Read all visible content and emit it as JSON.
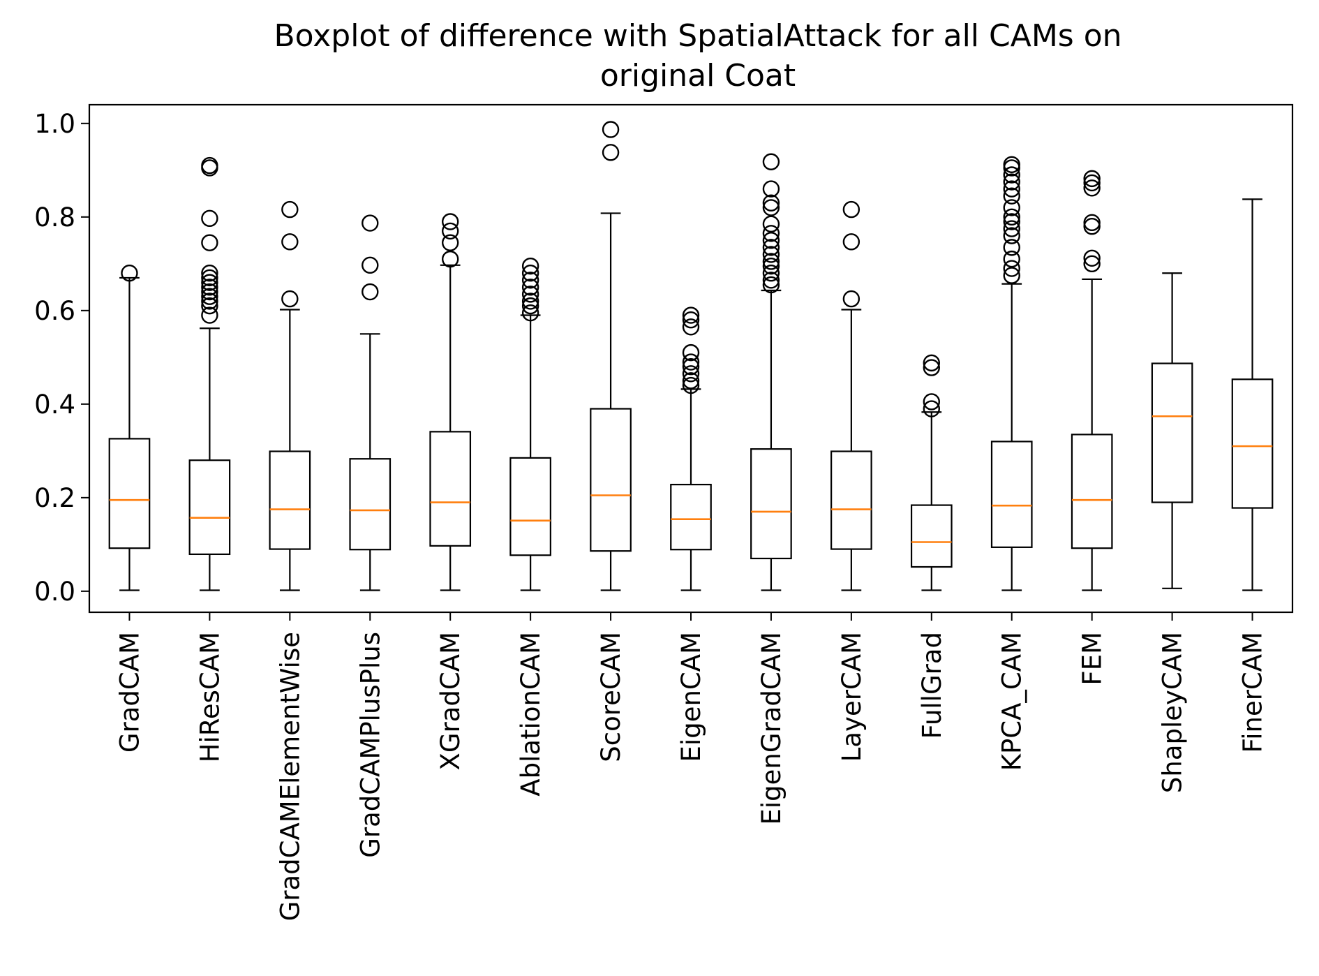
{
  "chart_data": {
    "type": "box",
    "title_lines": [
      "Boxplot of difference with SpatialAttack for all CAMs on",
      "original Coat"
    ],
    "xlabel": "",
    "ylabel": "",
    "ylim": [
      -0.045,
      1.04
    ],
    "yticks": [
      0.0,
      0.2,
      0.4,
      0.6,
      0.8,
      1.0
    ],
    "ytick_labels": [
      "0.0",
      "0.2",
      "0.4",
      "0.6",
      "0.8",
      "1.0"
    ],
    "grid": false,
    "colors": {
      "box": "#000000",
      "median": "#ff7f0e"
    },
    "categories": [
      "GradCAM",
      "HiResCAM",
      "GradCAMElementWise",
      "GradCAMPlusPlus",
      "XGradCAM",
      "AblationCAM",
      "ScoreCAM",
      "EigenCAM",
      "EigenGradCAM",
      "LayerCAM",
      "FullGrad",
      "KPCA_CAM",
      "FEM",
      "ShapleyCAM",
      "FinerCAM"
    ],
    "boxes": [
      {
        "whislo": 0.002,
        "q1": 0.092,
        "med": 0.195,
        "q3": 0.326,
        "whishi": 0.67,
        "fliers": [
          0.68
        ]
      },
      {
        "whislo": 0.002,
        "q1": 0.079,
        "med": 0.157,
        "q3": 0.28,
        "whishi": 0.562,
        "fliers": [
          0.59,
          0.61,
          0.62,
          0.63,
          0.64,
          0.65,
          0.66,
          0.67,
          0.68,
          0.745,
          0.797,
          0.905,
          0.91
        ]
      },
      {
        "whislo": 0.002,
        "q1": 0.09,
        "med": 0.175,
        "q3": 0.299,
        "whishi": 0.602,
        "fliers": [
          0.625,
          0.747,
          0.816
        ]
      },
      {
        "whislo": 0.002,
        "q1": 0.089,
        "med": 0.173,
        "q3": 0.283,
        "whishi": 0.55,
        "fliers": [
          0.64,
          0.697,
          0.787
        ]
      },
      {
        "whislo": 0.002,
        "q1": 0.097,
        "med": 0.19,
        "q3": 0.341,
        "whishi": 0.697,
        "fliers": [
          0.71,
          0.745,
          0.77,
          0.79
        ]
      },
      {
        "whislo": 0.002,
        "q1": 0.077,
        "med": 0.151,
        "q3": 0.285,
        "whishi": 0.59,
        "fliers": [
          0.595,
          0.61,
          0.62,
          0.635,
          0.65,
          0.665,
          0.68,
          0.695
        ]
      },
      {
        "whislo": 0.002,
        "q1": 0.086,
        "med": 0.205,
        "q3": 0.39,
        "whishi": 0.808,
        "fliers": [
          0.938,
          0.987
        ]
      },
      {
        "whislo": 0.002,
        "q1": 0.089,
        "med": 0.154,
        "q3": 0.228,
        "whishi": 0.432,
        "fliers": [
          0.44,
          0.45,
          0.465,
          0.48,
          0.49,
          0.51,
          0.565,
          0.58,
          0.59
        ]
      },
      {
        "whislo": 0.002,
        "q1": 0.07,
        "med": 0.17,
        "q3": 0.304,
        "whishi": 0.643,
        "fliers": [
          0.655,
          0.665,
          0.68,
          0.695,
          0.705,
          0.72,
          0.735,
          0.75,
          0.765,
          0.785,
          0.82,
          0.83,
          0.86,
          0.918
        ]
      },
      {
        "whislo": 0.002,
        "q1": 0.09,
        "med": 0.175,
        "q3": 0.299,
        "whishi": 0.602,
        "fliers": [
          0.625,
          0.747,
          0.816
        ]
      },
      {
        "whislo": 0.002,
        "q1": 0.052,
        "med": 0.105,
        "q3": 0.184,
        "whishi": 0.383,
        "fliers": [
          0.39,
          0.405,
          0.478,
          0.488
        ]
      },
      {
        "whislo": 0.002,
        "q1": 0.094,
        "med": 0.183,
        "q3": 0.32,
        "whishi": 0.657,
        "fliers": [
          0.675,
          0.69,
          0.71,
          0.735,
          0.76,
          0.775,
          0.79,
          0.8,
          0.82,
          0.845,
          0.86,
          0.875,
          0.89,
          0.905,
          0.912
        ]
      },
      {
        "whislo": 0.002,
        "q1": 0.092,
        "med": 0.195,
        "q3": 0.335,
        "whishi": 0.667,
        "fliers": [
          0.7,
          0.712,
          0.78,
          0.788,
          0.862,
          0.873,
          0.882
        ]
      },
      {
        "whislo": 0.006,
        "q1": 0.19,
        "med": 0.374,
        "q3": 0.487,
        "whishi": 0.68,
        "fliers": []
      },
      {
        "whislo": 0.002,
        "q1": 0.178,
        "med": 0.31,
        "q3": 0.453,
        "whishi": 0.838,
        "fliers": []
      }
    ]
  }
}
